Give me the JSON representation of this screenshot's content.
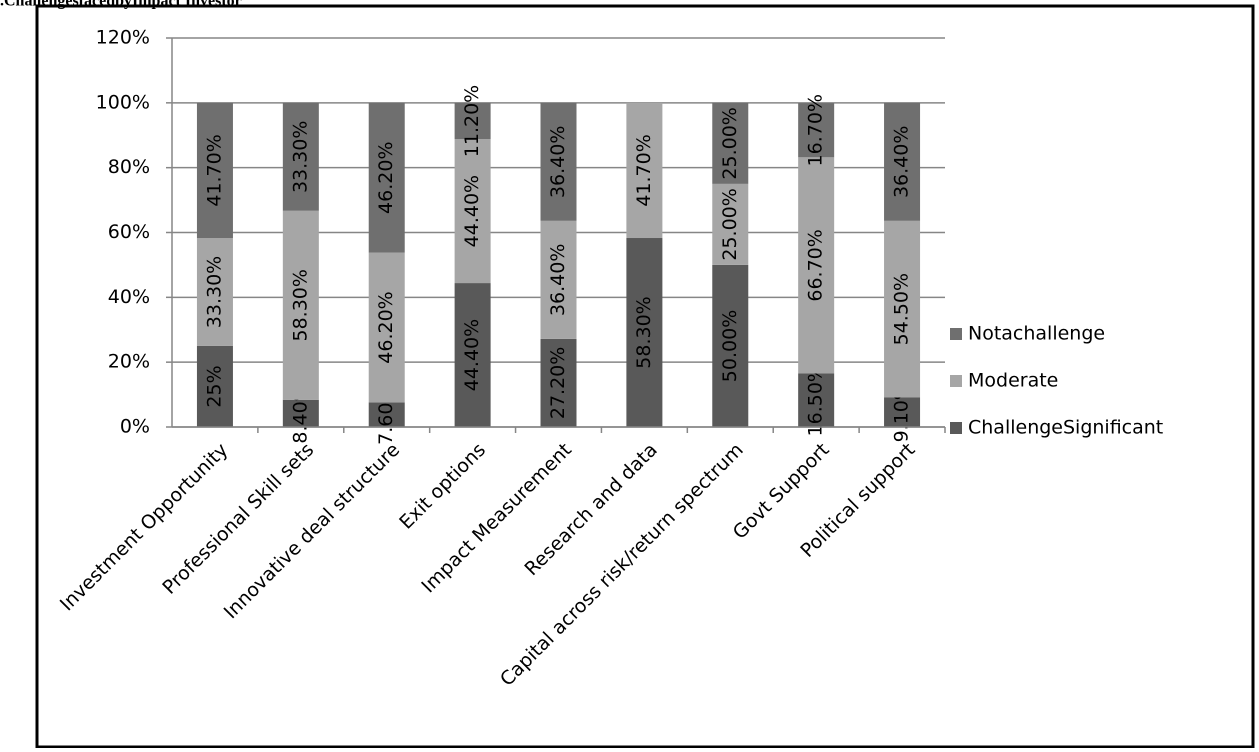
{
  "chart_data": {
    "type": "stacked-bar",
    "title": ".ChallengesfacedbyImpact Investor",
    "categories": [
      "Investment Opportunity",
      "Professional Skill sets",
      "Innovative deal structure",
      "Exit options",
      "Impact Measurement",
      "Research and data",
      "Capital across risk/return spectrum",
      "Govt Support",
      "Political support"
    ],
    "series": [
      {
        "name": "ChallengeSignificant",
        "color": "#595959",
        "values": [
          25,
          8.4,
          7.6,
          44.4,
          27.2,
          58.3,
          50,
          16.5,
          9.1
        ],
        "value_labels": [
          "25%",
          "8.40%",
          "7.60%",
          "44.40%",
          "27.20%",
          "58.30%",
          "50.00%",
          "16.50%",
          "9.10%"
        ]
      },
      {
        "name": "Moderate",
        "color": "#a6a6a6",
        "values": [
          33.3,
          58.3,
          46.2,
          44.4,
          36.4,
          41.7,
          25,
          66.7,
          54.5
        ],
        "value_labels": [
          "33.30%",
          "58.30%",
          "46.20%",
          "44.40%",
          "36.40%",
          "41.70%",
          "25.00%",
          "66.70%",
          "54.50%"
        ]
      },
      {
        "name": "Notachallenge",
        "color": "#6f6f6f",
        "values": [
          41.7,
          33.3,
          46.2,
          11.2,
          36.4,
          null,
          25,
          16.7,
          36.4
        ],
        "value_labels": [
          "41.70%",
          "33.30%",
          "46.20%",
          "11.20%",
          "36.40%",
          null,
          "25.00%",
          "16.70%",
          "36.40%"
        ]
      }
    ],
    "ylim": [
      0,
      120
    ],
    "yticks": [
      {
        "value": 0,
        "label": "0%"
      },
      {
        "value": 20,
        "label": "20%"
      },
      {
        "value": 40,
        "label": "40%"
      },
      {
        "value": 60,
        "label": "60%"
      },
      {
        "value": 80,
        "label": "80%"
      },
      {
        "value": 100,
        "label": "100%"
      },
      {
        "value": 120,
        "label": "120%"
      }
    ],
    "grid": true,
    "legend": "right"
  }
}
